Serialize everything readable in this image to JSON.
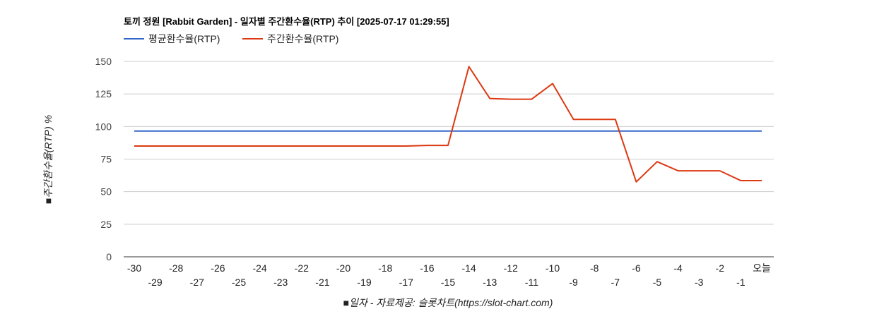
{
  "chart_data": {
    "type": "line",
    "title": "토끼 정원 [Rabbit Garden] - 일자별 주간환수율(RTP) 추이 [2025-07-17 01:29:55]",
    "xlabel": "■일자 - 자료제공: 슬롯차트(https://slot-chart.com)",
    "ylabel": "■주간환수율(RTP) %",
    "ylim": [
      0,
      150
    ],
    "yticks": [
      0,
      25,
      50,
      75,
      100,
      125,
      150
    ],
    "grid": true,
    "legend_position": "top-left",
    "categories": [
      "-30",
      "-29",
      "-28",
      "-27",
      "-26",
      "-25",
      "-24",
      "-23",
      "-22",
      "-21",
      "-20",
      "-19",
      "-18",
      "-17",
      "-16",
      "-15",
      "-14",
      "-13",
      "-12",
      "-11",
      "-10",
      "-9",
      "-8",
      "-7",
      "-6",
      "-5",
      "-4",
      "-3",
      "-2",
      "-1",
      "오늘"
    ],
    "series": [
      {
        "name": "평균환수율(RTP)",
        "color": "#3366cc",
        "values": [
          96.5,
          96.5,
          96.5,
          96.5,
          96.5,
          96.5,
          96.5,
          96.5,
          96.5,
          96.5,
          96.5,
          96.5,
          96.5,
          96.5,
          96.5,
          96.5,
          96.5,
          96.5,
          96.5,
          96.5,
          96.5,
          96.5,
          96.5,
          96.5,
          96.5,
          96.5,
          96.5,
          96.5,
          96.5,
          96.5,
          96.5
        ]
      },
      {
        "name": "주간환수율(RTP)",
        "color": "#dc3912",
        "values": [
          85,
          85,
          85,
          85,
          85,
          85,
          85,
          85,
          85,
          85,
          85,
          85,
          85,
          85,
          85.5,
          85.5,
          146,
          121.5,
          121,
          121,
          133,
          105.5,
          105.5,
          105.5,
          57.5,
          73,
          66,
          66,
          66,
          58.5,
          58.5
        ]
      }
    ]
  }
}
